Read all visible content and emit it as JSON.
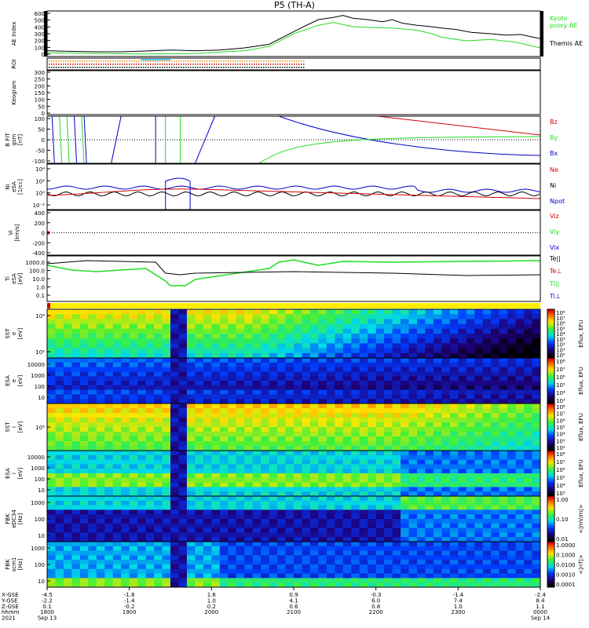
{
  "title": "P5 (TH-A)",
  "colors": {
    "red": "#d40000",
    "green": "#22dd22",
    "blue": "#0000cc",
    "black": "#000000",
    "orange": "#ff8800"
  },
  "chart_data": [
    {
      "type": "line",
      "panel": "ae",
      "ylabel": "AE Index",
      "yticks": [
        "600",
        "500",
        "400",
        "300",
        "200",
        "100",
        "0"
      ],
      "ylim": [
        0,
        600
      ],
      "legend": [
        "Kyoto proxy AE",
        "Themis AE"
      ],
      "series": [
        {
          "name": "Themis AE",
          "color": "#000000",
          "x": [
            0,
            0.05,
            0.1,
            0.15,
            0.2,
            0.25,
            0.3,
            0.35,
            0.4,
            0.45,
            0.5,
            0.52,
            0.55,
            0.58,
            0.6,
            0.62,
            0.65,
            0.68,
            0.7,
            0.72,
            0.75,
            0.78,
            0.8,
            0.83,
            0.86,
            0.9,
            0.93,
            0.96,
            1.0
          ],
          "y": [
            60,
            50,
            45,
            45,
            55,
            70,
            60,
            70,
            100,
            150,
            330,
            400,
            500,
            530,
            560,
            520,
            500,
            470,
            500,
            450,
            420,
            400,
            380,
            360,
            320,
            300,
            280,
            290,
            230
          ]
        },
        {
          "name": "Kyoto proxy AE",
          "color": "#22dd22",
          "x": [
            0,
            0.1,
            0.2,
            0.3,
            0.4,
            0.45,
            0.5,
            0.52,
            0.55,
            0.58,
            0.6,
            0.62,
            0.65,
            0.7,
            0.75,
            0.78,
            0.8,
            0.85,
            0.9,
            0.95,
            1.0
          ],
          "y": [
            30,
            20,
            15,
            20,
            60,
            120,
            300,
            350,
            420,
            460,
            430,
            400,
            390,
            380,
            350,
            300,
            250,
            200,
            220,
            180,
            100
          ]
        }
      ]
    },
    {
      "type": "line",
      "panel": "roi",
      "ylabel": "ROI"
    },
    {
      "type": "heatmap",
      "panel": "keogram",
      "ylabel": "Keogram",
      "yticks": [
        "300",
        "250",
        "200",
        "150",
        "100",
        "50",
        "0"
      ]
    },
    {
      "type": "line",
      "panel": "bfield",
      "ylabel": [
        "B FIT",
        "gsm",
        "[nT]"
      ],
      "yticks": [
        "100",
        "50",
        "0",
        "-50",
        "-100"
      ],
      "ylim": [
        -100,
        100
      ],
      "legend": [
        "Bz",
        "By",
        "Bx"
      ]
    },
    {
      "type": "line",
      "panel": "density",
      "ylabel": [
        "Ni",
        "eSA",
        "[1/cc]"
      ],
      "yticks": [
        "10⁴",
        "10²",
        "10⁰",
        "10⁻²"
      ],
      "legend": [
        "Ne",
        "Ni",
        "Npot"
      ]
    },
    {
      "type": "line",
      "panel": "velocity",
      "ylabel": [
        "Vi",
        "[km/s]"
      ],
      "yticks": [
        "400",
        "200",
        "0",
        "-200",
        "-400"
      ],
      "ylim": [
        -400,
        400
      ],
      "legend": [
        "Viz",
        "Viy",
        "Vix"
      ]
    },
    {
      "type": "line",
      "panel": "temperature",
      "ylabel": [
        "Ti",
        "eSA",
        "[eV]"
      ],
      "yticks": [
        "1000.0",
        "100.0",
        "10.0",
        "1.0",
        "0.1"
      ],
      "legend": [
        "Te||",
        "Te⊥",
        "Ti||",
        "Ti⊥"
      ]
    },
    {
      "type": "heatmap",
      "panel": "sst-e",
      "ylabel": [
        "SST",
        "e",
        "[eV]"
      ],
      "yticks": [
        "10⁴",
        "10²"
      ],
      "cbar_label": "Eflux, EFU",
      "cbar_ticks": [
        "10⁸",
        "10⁷",
        "10⁶",
        "10⁵",
        "10⁴",
        "10³",
        "10²",
        "10¹",
        "10⁰"
      ]
    },
    {
      "type": "heatmap",
      "panel": "esa-e",
      "ylabel": [
        "ESA",
        "e",
        "[eV]"
      ],
      "yticks": [
        "10000",
        "1000",
        "100",
        "10"
      ],
      "cbar_label": "Eflux, EFU",
      "cbar_ticks": [
        "10⁸",
        "10⁷",
        "10⁶",
        "10⁵",
        "10⁴",
        "10³"
      ]
    },
    {
      "type": "heatmap",
      "panel": "sst-i",
      "ylabel": [
        "SST",
        "i",
        "[eV]"
      ],
      "yticks": [
        "10⁵"
      ],
      "cbar_label": "Eflux, EFU",
      "cbar_ticks": [
        "10⁸",
        "10⁷",
        "10⁶",
        "10⁵",
        "10⁴",
        "10³",
        "10²"
      ]
    },
    {
      "type": "heatmap",
      "panel": "esa-i",
      "ylabel": [
        "ESA",
        "i",
        "[eV]"
      ],
      "yticks": [
        "10000",
        "1000",
        "100",
        "10"
      ],
      "cbar_label": "Eflux, EFU",
      "cbar_ticks": [
        "10⁸",
        "10⁷",
        "10⁶",
        "10⁵",
        "10⁴",
        "10³"
      ]
    },
    {
      "type": "heatmap",
      "panel": "fbk-e",
      "ylabel": [
        "FBK",
        "eDC34",
        "[Hz]"
      ],
      "yticks": [
        "1000",
        "100",
        "10"
      ],
      "cbar_label": "<|mV/m|>",
      "cbar_ticks": [
        "1.00",
        "0.10",
        "0.01"
      ]
    },
    {
      "type": "heatmap",
      "panel": "fbk-b",
      "ylabel": [
        "FBK",
        "scm1",
        "[Hz]"
      ],
      "yticks": [
        "1000",
        "100",
        "10"
      ],
      "cbar_label": "<|nT|>",
      "cbar_ticks": [
        "1.0000",
        "0.1000",
        "0.0100",
        "0.0010",
        "0.0001"
      ]
    }
  ],
  "xaxis": {
    "row_labels": [
      "X-GSE",
      "Y-GSE",
      "Z-GSE",
      "hhmm",
      "2021"
    ],
    "ticks": [
      {
        "pos": 0.0,
        "vals": [
          "-4.5",
          "-2.2",
          "0.1",
          "1800",
          "Sep 13"
        ]
      },
      {
        "pos": 0.1667,
        "vals": [
          "-1.8",
          "-1.4",
          "-0.2",
          "1900",
          ""
        ]
      },
      {
        "pos": 0.3333,
        "vals": [
          "1.6",
          "1.0",
          "0.2",
          "2000",
          ""
        ]
      },
      {
        "pos": 0.5,
        "vals": [
          "0.9",
          "4.1",
          "0.6",
          "2100",
          ""
        ]
      },
      {
        "pos": 0.6667,
        "vals": [
          "-0.3",
          "6.0",
          "0.8",
          "2200",
          ""
        ]
      },
      {
        "pos": 0.8333,
        "vals": [
          "-1.4",
          "7.4",
          "1.0",
          "2300",
          ""
        ]
      },
      {
        "pos": 1.0,
        "vals": [
          "-2.4",
          "8.4",
          "1.1",
          "0000",
          "Sep 14"
        ]
      }
    ]
  }
}
